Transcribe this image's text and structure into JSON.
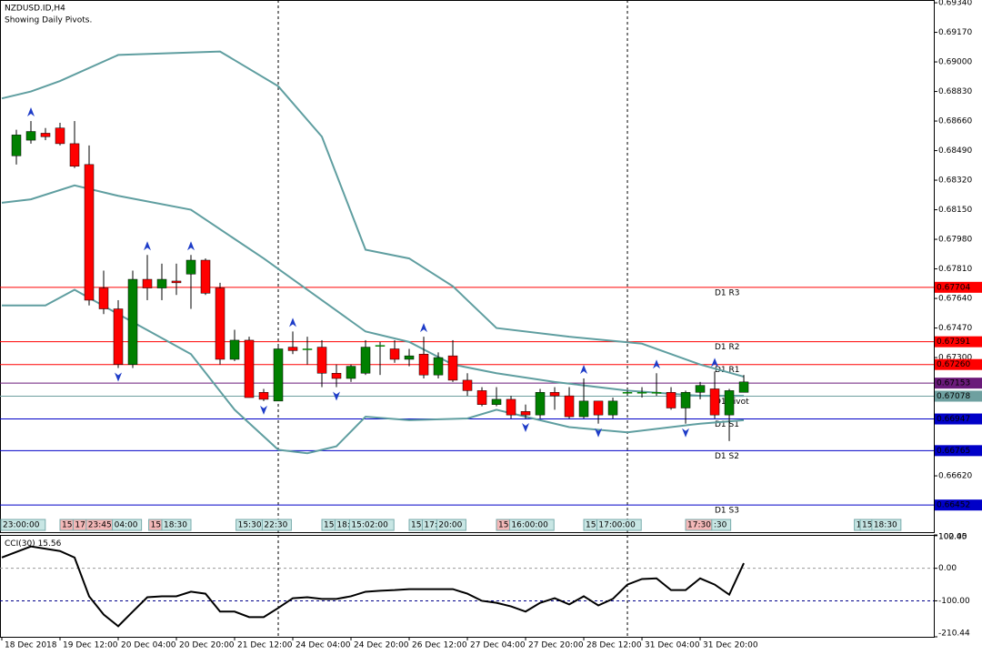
{
  "chart_data": [
    {
      "type": "candlestick",
      "title": "NZDUSD.ID,H4",
      "subtitle": "Showing Daily Pivots.",
      "xlim": [
        -1.125,
        63.06
      ],
      "ylim": [
        0.66296,
        0.69356
      ],
      "yticks": [
        {
          "value": 0.6934,
          "label": "0.69340"
        },
        {
          "value": 0.6917,
          "label": "0.69170"
        },
        {
          "value": 0.69,
          "label": "0.69000"
        },
        {
          "value": 0.6883,
          "label": "0.68830"
        },
        {
          "value": 0.6866,
          "label": "0.68660"
        },
        {
          "value": 0.6849,
          "label": "0.68490"
        },
        {
          "value": 0.6832,
          "label": "0.68320"
        },
        {
          "value": 0.6815,
          "label": "0.68150"
        },
        {
          "value": 0.6798,
          "label": "0.67980"
        },
        {
          "value": 0.6781,
          "label": "0.67810"
        },
        {
          "value": 0.6764,
          "label": "0.67640"
        },
        {
          "value": 0.6747,
          "label": "0.67470"
        },
        {
          "value": 0.673,
          "label": "0.67300"
        },
        {
          "value": 0.6662,
          "label": "0.66620"
        }
      ],
      "up_color": "#008000",
      "down_color": "#ff0000",
      "x": [
        0,
        1,
        2,
        3,
        4,
        5,
        6,
        7,
        8,
        9,
        10,
        11,
        12,
        13,
        14,
        15,
        16,
        17,
        18,
        19,
        20,
        21,
        22,
        23,
        24,
        25,
        26,
        27,
        28,
        29,
        30,
        31,
        32,
        33,
        34,
        35,
        36,
        37,
        38,
        39,
        40,
        41,
        42,
        43,
        44,
        45,
        46,
        47,
        48,
        49,
        50
      ],
      "open": [
        0.6846,
        0.6855,
        0.6859,
        0.6862,
        0.6853,
        0.6841,
        0.677,
        0.6758,
        0.6726,
        0.6775,
        0.677,
        0.6774,
        0.6778,
        0.6786,
        0.677,
        0.6729,
        0.674,
        0.671,
        0.6705,
        0.6736,
        0.6735,
        0.6736,
        0.6721,
        0.6718,
        0.6721,
        0.6737,
        0.6735,
        0.6729,
        0.6732,
        0.672,
        0.6731,
        0.6717,
        0.6711,
        0.6703,
        0.6706,
        0.6699,
        0.6697,
        0.671,
        0.6708,
        0.6696,
        0.6705,
        0.6697,
        0.671,
        0.671,
        0.671,
        0.671,
        0.6701,
        0.671,
        0.6712,
        0.6697,
        0.671
      ],
      "high": [
        0.6861,
        0.6866,
        0.6862,
        0.6865,
        0.6866,
        0.6852,
        0.678,
        0.6763,
        0.678,
        0.6789,
        0.6784,
        0.6784,
        0.6789,
        0.6787,
        0.6773,
        0.6746,
        0.6742,
        0.6712,
        0.6737,
        0.6745,
        0.6742,
        0.674,
        0.6726,
        0.6726,
        0.674,
        0.6739,
        0.674,
        0.6735,
        0.6742,
        0.6733,
        0.674,
        0.6721,
        0.6713,
        0.6713,
        0.6708,
        0.6703,
        0.6712,
        0.6713,
        0.6713,
        0.6718,
        0.6705,
        0.6707,
        0.6711,
        0.6713,
        0.6721,
        0.6713,
        0.6711,
        0.6716,
        0.6722,
        0.6712,
        0.672
      ],
      "low": [
        0.6841,
        0.6853,
        0.6855,
        0.6852,
        0.6839,
        0.676,
        0.6755,
        0.6724,
        0.6724,
        0.6763,
        0.6763,
        0.6766,
        0.6758,
        0.6766,
        0.6726,
        0.6728,
        0.6707,
        0.6705,
        0.6705,
        0.6732,
        0.6726,
        0.6713,
        0.6713,
        0.6716,
        0.672,
        0.672,
        0.6727,
        0.6725,
        0.6718,
        0.6718,
        0.6716,
        0.6708,
        0.6702,
        0.6702,
        0.6695,
        0.6695,
        0.6695,
        0.67,
        0.6695,
        0.6695,
        0.6692,
        0.6695,
        0.6709,
        0.6707,
        0.6708,
        0.67,
        0.6692,
        0.6706,
        0.6695,
        0.6682,
        0.671
      ],
      "close": [
        0.6858,
        0.686,
        0.6857,
        0.6853,
        0.684,
        0.6763,
        0.6758,
        0.6726,
        0.6775,
        0.677,
        0.6775,
        0.6773,
        0.6786,
        0.6767,
        0.6729,
        0.674,
        0.6707,
        0.6706,
        0.6735,
        0.6734,
        0.6735,
        0.6721,
        0.6718,
        0.6725,
        0.6736,
        0.6737,
        0.6729,
        0.6731,
        0.672,
        0.673,
        0.6717,
        0.6711,
        0.6703,
        0.6706,
        0.6697,
        0.6697,
        0.671,
        0.6708,
        0.6696,
        0.6705,
        0.6697,
        0.6705,
        0.671,
        0.671,
        0.671,
        0.6701,
        0.671,
        0.6714,
        0.6697,
        0.6711,
        0.6716
      ],
      "bands": [
        {
          "color": "#5f9ea0",
          "x": [
            -1,
            1,
            3,
            7,
            14,
            18,
            21,
            24,
            27,
            30,
            33,
            38,
            43,
            47,
            50
          ],
          "values": [
            0.6879,
            0.6883,
            0.6889,
            0.6904,
            0.6906,
            0.6886,
            0.6857,
            0.6792,
            0.6787,
            0.6771,
            0.6747,
            0.6742,
            0.6738,
            0.6726,
            0.6719
          ]
        },
        {
          "color": "#5f9ea0",
          "x": [
            -1,
            1,
            4,
            7,
            12,
            17,
            21,
            24,
            27,
            30,
            33,
            37,
            42,
            47,
            50
          ],
          "values": [
            0.6819,
            0.6821,
            0.6829,
            0.6823,
            0.6815,
            0.6787,
            0.6763,
            0.6745,
            0.6739,
            0.6726,
            0.6721,
            0.6716,
            0.6711,
            0.6708,
            0.6708
          ]
        },
        {
          "color": "#5f9ea0",
          "x": [
            -1,
            2,
            4,
            7,
            12,
            15,
            18,
            20,
            22,
            24,
            27,
            31,
            33,
            36,
            38,
            42,
            45,
            47,
            50
          ],
          "values": [
            0.676,
            0.676,
            0.6769,
            0.6755,
            0.6732,
            0.67,
            0.6677,
            0.6675,
            0.6679,
            0.6696,
            0.6694,
            0.6695,
            0.67,
            0.6694,
            0.669,
            0.6687,
            0.669,
            0.6692,
            0.6694
          ]
        }
      ],
      "fractals_up": [
        1,
        9,
        12,
        19,
        28,
        39,
        44,
        48
      ],
      "fractals_down": [
        7,
        17,
        22,
        35,
        40,
        46
      ],
      "fractal_color": "#1e3cc8",
      "separators": [
        18,
        42
      ],
      "levels": [
        {
          "name": "D1 R3",
          "value": 0.67704,
          "color": "#ff0000"
        },
        {
          "name": "D1 R2",
          "value": 0.67391,
          "color": "#ff0000"
        },
        {
          "name": "D1 R1",
          "value": 0.6726,
          "value_label": "0.67260",
          "color": "#ff0000"
        },
        {
          "value": 0.67153,
          "color": "#6a1a7a"
        },
        {
          "name": "D1 Pivot",
          "value": 0.67078,
          "color": "#6ea0a0"
        },
        {
          "name": "D1 S1",
          "value": 0.66947,
          "color": "#0000c8"
        },
        {
          "name": "D1 S2",
          "value": 0.66765,
          "color": "#0000c8"
        },
        {
          "name": "D1 S3",
          "value": 0.66452,
          "color": "#0000c8"
        }
      ],
      "time_tags": [
        {
          "text": "23:00:00",
          "at": -1.1,
          "color": "#c8e6e4"
        },
        {
          "text": "15:",
          "at": 3,
          "color": "#f4b8b8"
        },
        {
          "text": "17:",
          "at": 3.9,
          "color": "#f4b8b8"
        },
        {
          "text": "23:45",
          "at": 4.8,
          "color": "#f4b8b8"
        },
        {
          "text": "04:00",
          "at": 6.6,
          "color": "#c8e6e4"
        },
        {
          "text": "15:",
          "at": 9.1,
          "color": "#f4b8b8"
        },
        {
          "text": "18:30",
          "at": 10,
          "color": "#c8e6e4"
        },
        {
          "text": "15:30",
          "at": 15.1,
          "color": "#c8e6e4"
        },
        {
          "text": "22:30",
          "at": 16.9,
          "color": "#c8e6e4"
        },
        {
          "text": "15:",
          "at": 21,
          "color": "#c8e6e4"
        },
        {
          "text": "18:",
          "at": 21.9,
          "color": "#c8e6e4"
        },
        {
          "text": "15:02:00",
          "at": 22.9,
          "color": "#c8e6e4"
        },
        {
          "text": "15:",
          "at": 27,
          "color": "#c8e6e4"
        },
        {
          "text": "17:",
          "at": 27.9,
          "color": "#c8e6e4"
        },
        {
          "text": "20:00",
          "at": 28.9,
          "color": "#c8e6e4"
        },
        {
          "text": "15:",
          "at": 33,
          "color": "#f4b8b8"
        },
        {
          "text": "16:00:00",
          "at": 33.9,
          "color": "#c8e6e4"
        },
        {
          "text": "15:",
          "at": 39,
          "color": "#c8e6e4"
        },
        {
          "text": "17:00:00",
          "at": 39.9,
          "color": "#c8e6e4"
        },
        {
          "text": "17:30",
          "at": 46,
          "color": "#f4b8b8"
        },
        {
          "text": ":30",
          "at": 47.8,
          "color": "#c8e6e4"
        },
        {
          "text": "1",
          "at": 57.6,
          "color": "#c8e6e4"
        },
        {
          "text": "15",
          "at": 58,
          "color": "#c8e6e4"
        },
        {
          "text": "18:30",
          "at": 58.8,
          "color": "#c8e6e4"
        }
      ]
    },
    {
      "type": "line",
      "title": "CCI(30)",
      "last": 15.56,
      "xlim": [
        -1.125,
        63.06
      ],
      "ylim": [
        -210.44,
        102.45
      ],
      "yticks": [
        {
          "value": 102.45,
          "label": "102.45"
        },
        {
          "value": 100,
          "label": "100.00"
        },
        {
          "value": 0,
          "label": "0.00"
        },
        {
          "value": -100,
          "label": "-100.00"
        },
        {
          "value": -210.44,
          "label": "-210.44"
        }
      ],
      "levels": [
        0,
        -100
      ],
      "separators": [
        18,
        42
      ],
      "xticks": [
        {
          "value": -1,
          "label": "18 Dec 2018"
        },
        {
          "value": 3,
          "label": "19 Dec 12:00"
        },
        {
          "value": 7,
          "label": "20 Dec 04:00"
        },
        {
          "value": 11,
          "label": "20 Dec 20:00"
        },
        {
          "value": 15,
          "label": "21 Dec 12:00"
        },
        {
          "value": 19,
          "label": "24 Dec 04:00"
        },
        {
          "value": 23,
          "label": "24 Dec 20:00"
        },
        {
          "value": 27,
          "label": "26 Dec 12:00"
        },
        {
          "value": 31,
          "label": "27 Dec 04:00"
        },
        {
          "value": 35,
          "label": "27 Dec 20:00"
        },
        {
          "value": 39,
          "label": "28 Dec 12:00"
        },
        {
          "value": 43,
          "label": "31 Dec 04:00"
        },
        {
          "value": 47,
          "label": "31 Dec 20:00"
        }
      ],
      "color": "#000000",
      "x": [
        -1,
        1,
        3,
        4,
        5,
        6,
        7,
        8,
        9,
        10,
        11,
        12,
        13,
        14,
        15,
        16,
        17,
        18,
        19,
        20,
        21,
        22,
        23,
        24,
        25,
        26,
        27,
        28,
        29,
        30,
        31,
        32,
        33,
        34,
        35,
        36,
        37,
        38,
        39,
        40,
        41,
        42,
        43,
        44,
        45,
        46,
        47,
        48,
        49,
        50
      ],
      "values": [
        33,
        67,
        53,
        33,
        -86,
        -142,
        -178,
        -133,
        -89,
        -86,
        -86,
        -72,
        -78,
        -133,
        -133,
        -150,
        -150,
        -122,
        -92,
        -89,
        -94,
        -94,
        -86,
        -72,
        -69,
        -67,
        -64,
        -64,
        -64,
        -64,
        -78,
        -100,
        -106,
        -117,
        -133,
        -106,
        -92,
        -111,
        -86,
        -114,
        -94,
        -50,
        -33,
        -31,
        -67,
        -67,
        -31,
        -50,
        -81,
        15.56
      ]
    }
  ]
}
